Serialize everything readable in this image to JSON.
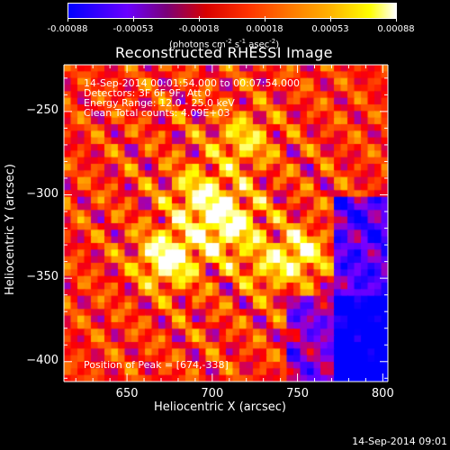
{
  "colorbar": {
    "tick_labels": [
      "-0.00088",
      "-0.00053",
      "-0.00018",
      "0.00018",
      "0.00053",
      "0.00088"
    ],
    "units_prefix": "(photons cm",
    "units_sup1": "-2",
    "units_s": " s",
    "units_sup2": "-1",
    "units_asec": " asec",
    "units_sup3": "-2",
    "units_suffix": ")"
  },
  "info_lines": [
    "14-Sep-2014 00:01:54.000 to 00:07:54.000",
    "Detectors: 3F 6F 9F, Att 0",
    "Energy Range: 12.0 - 25.0 keV",
    "Clean     Total counts: 4.09E+03"
  ],
  "peak_label": "Position of Peak = [674,-338]",
  "timestamp": "14-Sep-2014 09:01",
  "chart_data": {
    "type": "heatmap",
    "title": "Reconstructed RHESSI Image",
    "xlabel": "Heliocentric X (arcsec)",
    "ylabel": "Heliocentric Y (arcsec)",
    "xlim": [
      613,
      803
    ],
    "ylim": [
      -412,
      -222
    ],
    "xticks": [
      650,
      700,
      750,
      800
    ],
    "yticks": [
      -250,
      -300,
      -350,
      -400
    ],
    "zlim": [
      -0.00088,
      0.00088
    ],
    "colormap": [
      "#0000ff",
      "#7a00ff",
      "#ff0000",
      "#ff9900",
      "#ffff00",
      "#ffffff"
    ],
    "sources": [
      {
        "x": 674,
        "y": -338,
        "amp": 1.0,
        "sigma": 11
      },
      {
        "x": 708,
        "y": -318,
        "amp": 0.85,
        "sigma": 14
      },
      {
        "x": 752,
        "y": -335,
        "amp": 0.75,
        "sigma": 10
      },
      {
        "x": 718,
        "y": -268,
        "amp": 0.55,
        "sigma": 11
      },
      {
        "x": 692,
        "y": -300,
        "amp": 0.55,
        "sigma": 12
      },
      {
        "x": 733,
        "y": -345,
        "amp": 0.45,
        "sigma": 9
      }
    ]
  }
}
